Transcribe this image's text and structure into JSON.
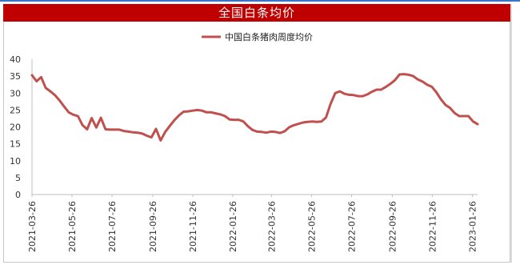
{
  "chart_data": {
    "type": "line",
    "title": "全国白条均价",
    "series": [
      {
        "name": "中国白条猪肉周度均价",
        "color": "#c0504d",
        "x": [
          "2021-03-26",
          "2021-04-02",
          "2021-04-09",
          "2021-04-16",
          "2021-04-23",
          "2021-04-30",
          "2021-05-07",
          "2021-05-14",
          "2021-05-21",
          "2021-05-28",
          "2021-06-04",
          "2021-06-11",
          "2021-06-18",
          "2021-06-25",
          "2021-07-02",
          "2021-07-09",
          "2021-07-16",
          "2021-07-23",
          "2021-07-30",
          "2021-08-06",
          "2021-08-13",
          "2021-08-20",
          "2021-08-27",
          "2021-09-03",
          "2021-09-10",
          "2021-09-17",
          "2021-09-24",
          "2021-10-01",
          "2021-10-08",
          "2021-10-15",
          "2021-10-22",
          "2021-10-29",
          "2021-11-05",
          "2021-11-12",
          "2021-11-19",
          "2021-11-26",
          "2021-12-03",
          "2021-12-10",
          "2021-12-17",
          "2021-12-24",
          "2021-12-31",
          "2022-01-07",
          "2022-01-14",
          "2022-01-21",
          "2022-01-28",
          "2022-02-04",
          "2022-02-11",
          "2022-02-18",
          "2022-02-25",
          "2022-03-04",
          "2022-03-11",
          "2022-03-18",
          "2022-03-25",
          "2022-04-01",
          "2022-04-08",
          "2022-04-15",
          "2022-04-22",
          "2022-04-29",
          "2022-05-06",
          "2022-05-13",
          "2022-05-20",
          "2022-05-27",
          "2022-06-03",
          "2022-06-10",
          "2022-06-17",
          "2022-06-24",
          "2022-07-01",
          "2022-07-08",
          "2022-07-15",
          "2022-07-22",
          "2022-07-29",
          "2022-08-05",
          "2022-08-12",
          "2022-08-19",
          "2022-08-26",
          "2022-09-02",
          "2022-09-09",
          "2022-09-16",
          "2022-09-23",
          "2022-09-30",
          "2022-10-07",
          "2022-10-14",
          "2022-10-21",
          "2022-10-28",
          "2022-11-04",
          "2022-11-11",
          "2022-11-18",
          "2022-11-25",
          "2022-12-02",
          "2022-12-09",
          "2022-12-16",
          "2022-12-23",
          "2022-12-30",
          "2023-01-06",
          "2023-01-13",
          "2023-01-20",
          "2023-01-27",
          "2023-02-03"
        ],
        "values": [
          35.3,
          33.5,
          34.7,
          31.5,
          30.5,
          29.4,
          27.8,
          26.0,
          24.3,
          23.6,
          23.2,
          20.5,
          19.3,
          22.6,
          19.8,
          22.7,
          19.3,
          19.2,
          19.2,
          19.2,
          18.8,
          18.6,
          18.4,
          18.3,
          18.0,
          17.4,
          16.9,
          19.4,
          16.0,
          18.5,
          20.3,
          22.0,
          23.4,
          24.5,
          24.6,
          24.8,
          25.0,
          24.8,
          24.3,
          24.3,
          24.0,
          23.7,
          23.2,
          22.2,
          22.1,
          22.1,
          21.6,
          20.2,
          19.1,
          18.6,
          18.5,
          18.3,
          18.6,
          18.5,
          18.2,
          18.7,
          19.9,
          20.5,
          20.9,
          21.3,
          21.5,
          21.6,
          21.5,
          21.6,
          22.8,
          26.8,
          30.0,
          30.5,
          29.8,
          29.5,
          29.4,
          29.1,
          29.1,
          29.6,
          30.4,
          31.0,
          31.0,
          31.8,
          32.7,
          33.8,
          35.5,
          35.6,
          35.4,
          35.0,
          34.0,
          33.4,
          32.5,
          31.9,
          30.3,
          28.2,
          26.5,
          25.6,
          24.1,
          23.2,
          23.2,
          23.2,
          21.6,
          20.8
        ]
      }
    ],
    "x_tick_labels": [
      "2021-03-26",
      "2021-05-26",
      "2021-07-26",
      "2021-09-26",
      "2021-11-26",
      "2022-01-26",
      "2022-03-26",
      "2022-05-26",
      "2022-07-26",
      "2022-09-26",
      "2022-11-26",
      "2023-01-26"
    ],
    "y_tick_labels": [
      "0",
      "5",
      "10",
      "15",
      "20",
      "25",
      "30",
      "35",
      "40"
    ],
    "ylim": [
      0,
      40
    ],
    "xlabel": "",
    "ylabel": "",
    "grid": false,
    "legend_position": "top-center"
  }
}
